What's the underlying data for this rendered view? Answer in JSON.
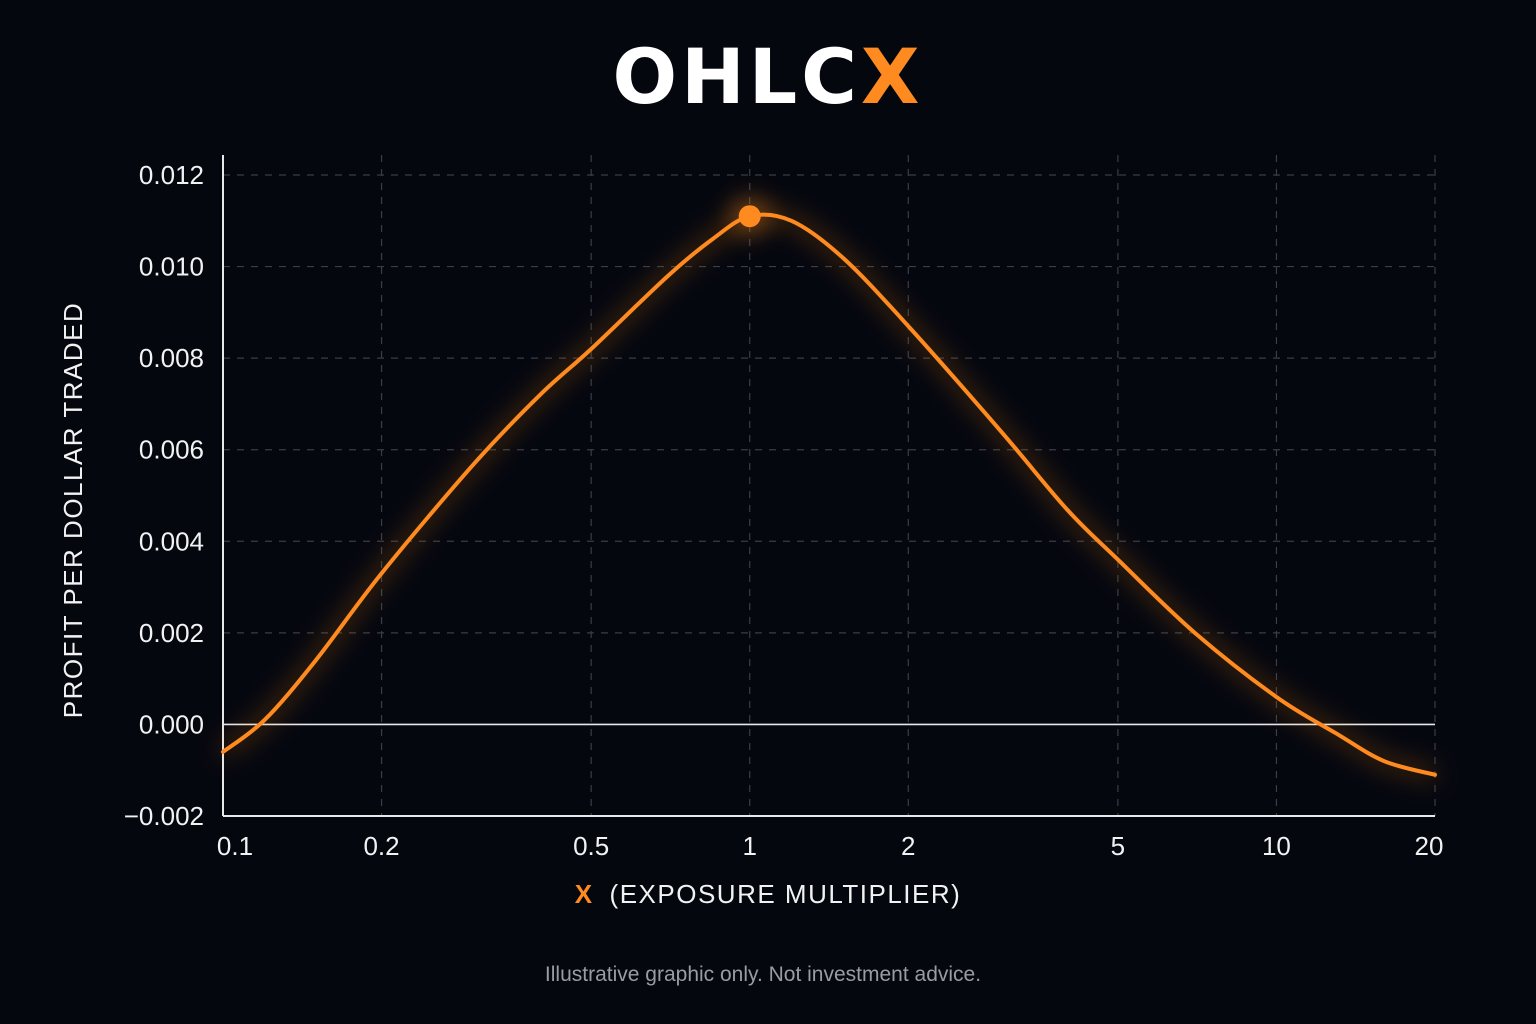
{
  "title": {
    "main": "OHLC",
    "accent": "X"
  },
  "disclaimer": "Illustrative graphic only. Not investment advice.",
  "colors": {
    "background": "#05070f",
    "accent": "#ff8a1f",
    "text": "#f2f2f2",
    "grid": "#3a3d46",
    "axis": "#e8e8e8"
  },
  "chart_data": {
    "type": "line",
    "xlabel": {
      "accent": "X",
      "rest": "(EXPOSURE MULTIPLIER)"
    },
    "ylabel": "PROFIT PER DOLLAR TRADED",
    "xscale": "log",
    "xlim": [
      0.1,
      20
    ],
    "ylim": [
      -0.002,
      0.0125
    ],
    "grid": true,
    "x_ticks": [
      {
        "value": 0.1,
        "label": "0.1"
      },
      {
        "value": 0.2,
        "label": "0.2"
      },
      {
        "value": 0.5,
        "label": "0.5"
      },
      {
        "value": 1,
        "label": "1"
      },
      {
        "value": 2,
        "label": "2"
      },
      {
        "value": 5,
        "label": "5"
      },
      {
        "value": 10,
        "label": "10"
      },
      {
        "value": 20,
        "label": "20"
      }
    ],
    "y_ticks": [
      {
        "value": 0.012,
        "label": "0.012"
      },
      {
        "value": 0.01,
        "label": "0.010"
      },
      {
        "value": 0.008,
        "label": "0.008"
      },
      {
        "value": 0.006,
        "label": "0.006"
      },
      {
        "value": 0.004,
        "label": "0.004"
      },
      {
        "value": 0.002,
        "label": "0.002"
      },
      {
        "value": 0.0,
        "label": "0.000"
      },
      {
        "value": -0.002,
        "label": "−0.002"
      }
    ],
    "series": [
      {
        "x": [
          0.1,
          0.12,
          0.15,
          0.2,
          0.3,
          0.4,
          0.5,
          0.7,
          0.85,
          1.0,
          1.2,
          1.5,
          2,
          3,
          4,
          5,
          7,
          10,
          13,
          16,
          20
        ],
        "y": [
          -0.0006,
          0.0001,
          0.0014,
          0.0033,
          0.0057,
          0.0072,
          0.0082,
          0.0098,
          0.0106,
          0.0111,
          0.011,
          0.0102,
          0.0087,
          0.0064,
          0.0047,
          0.0036,
          0.002,
          0.0006,
          -0.0002,
          -0.0008,
          -0.0011
        ]
      }
    ],
    "annotations": [
      {
        "type": "marker",
        "x": 1,
        "y": 0.0111
      }
    ]
  }
}
